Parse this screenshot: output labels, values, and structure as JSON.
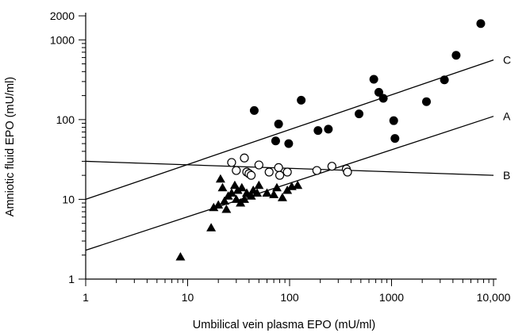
{
  "chart_data": {
    "type": "scatter",
    "title": "",
    "xlabel": "Umbilical vein plasma EPO (mU/ml)",
    "ylabel": "Amniotic fluid EPO (mU/ml)",
    "x_scale": "log",
    "y_scale": "log",
    "xlim": [
      1,
      10000
    ],
    "ylim": [
      1,
      2000
    ],
    "grid": false,
    "x_ticks": [
      {
        "value": 1,
        "label": "1"
      },
      {
        "value": 10,
        "label": "10"
      },
      {
        "value": 100,
        "label": "100"
      },
      {
        "value": 1000,
        "label": "1000"
      },
      {
        "value": 10000,
        "label": "10,000"
      }
    ],
    "y_ticks": [
      {
        "value": 1,
        "label": "1"
      },
      {
        "value": 10,
        "label": "10"
      },
      {
        "value": 100,
        "label": "100"
      },
      {
        "value": 1000,
        "label": "1000"
      },
      {
        "value": 2000,
        "label": "2000"
      }
    ],
    "series": [
      {
        "marker": "filled-circle",
        "points": [
          [
            45,
            130
          ],
          [
            78,
            88
          ],
          [
            73,
            54
          ],
          [
            98,
            50
          ],
          [
            130,
            175
          ],
          [
            190,
            73
          ],
          [
            240,
            76
          ],
          [
            480,
            118
          ],
          [
            670,
            320
          ],
          [
            750,
            220
          ],
          [
            830,
            185
          ],
          [
            1050,
            97
          ],
          [
            1080,
            58
          ],
          [
            2200,
            168
          ],
          [
            3300,
            315
          ],
          [
            4300,
            640
          ],
          [
            7500,
            1600
          ]
        ]
      },
      {
        "marker": "open-circle",
        "points": [
          [
            27,
            29
          ],
          [
            30,
            23
          ],
          [
            36,
            33
          ],
          [
            38,
            22
          ],
          [
            40,
            21
          ],
          [
            42,
            20
          ],
          [
            50,
            27
          ],
          [
            63,
            22
          ],
          [
            78,
            25
          ],
          [
            80,
            20
          ],
          [
            95,
            22
          ],
          [
            185,
            23
          ],
          [
            260,
            26
          ],
          [
            360,
            24
          ],
          [
            370,
            22
          ]
        ]
      },
      {
        "marker": "filled-triangle",
        "points": [
          [
            8.5,
            1.9
          ],
          [
            17,
            4.4
          ],
          [
            18,
            7.9
          ],
          [
            20,
            8.5
          ],
          [
            21,
            18
          ],
          [
            22,
            14
          ],
          [
            23,
            9.5
          ],
          [
            24,
            7.5
          ],
          [
            25,
            11
          ],
          [
            27,
            12
          ],
          [
            29,
            15
          ],
          [
            30,
            10
          ],
          [
            31,
            13
          ],
          [
            33,
            9
          ],
          [
            34,
            14
          ],
          [
            36,
            10
          ],
          [
            38,
            12
          ],
          [
            42,
            11
          ],
          [
            44,
            13
          ],
          [
            48,
            12
          ],
          [
            50,
            15
          ],
          [
            60,
            12
          ],
          [
            70,
            11.5
          ],
          [
            75,
            14
          ],
          [
            85,
            10.5
          ],
          [
            95,
            13
          ],
          [
            105,
            14.5
          ],
          [
            120,
            15
          ]
        ]
      }
    ],
    "lines": [
      {
        "label": "C",
        "x": [
          1,
          10000
        ],
        "y": [
          10,
          560
        ]
      },
      {
        "label": "A",
        "x": [
          1,
          10000
        ],
        "y": [
          2.3,
          110
        ]
      },
      {
        "label": "B",
        "x": [
          1,
          10000
        ],
        "y": [
          30,
          20
        ]
      }
    ]
  }
}
